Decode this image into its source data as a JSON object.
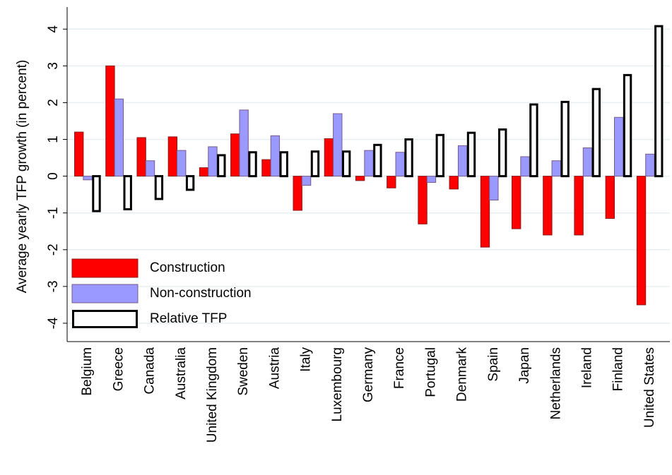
{
  "chart_data": {
    "type": "bar",
    "ylabel": "Average yearly TFP growth (in percent)",
    "categories": [
      "Belgium",
      "Greece",
      "Canada",
      "Australia",
      "United Kingdom",
      "Sweden",
      "Austria",
      "Italy",
      "Luxembourg",
      "Germany",
      "France",
      "Portugal",
      "Denmark",
      "Spain",
      "Japan",
      "Netherlands",
      "Ireland",
      "Finland",
      "United States"
    ],
    "series": [
      {
        "name": "Construction",
        "color": "#ff0000",
        "edgecolor": "#8b1a1a",
        "values": [
          1.2,
          3.0,
          1.05,
          1.07,
          0.23,
          1.15,
          0.45,
          -0.93,
          1.02,
          -0.12,
          -0.32,
          -1.3,
          -0.35,
          -1.93,
          -1.43,
          -1.6,
          -1.6,
          -1.15,
          -3.5
        ]
      },
      {
        "name": "Non-construction",
        "color": "#9999ff",
        "edgecolor": "#7a5a8a",
        "values": [
          -0.1,
          2.1,
          0.42,
          0.7,
          0.8,
          1.8,
          1.1,
          -0.25,
          1.7,
          0.7,
          0.65,
          -0.17,
          0.83,
          -0.65,
          0.53,
          0.42,
          0.77,
          1.6,
          0.6
        ]
      },
      {
        "name": "Relative TFP",
        "color": "#ffffff",
        "edgecolor": "#000000",
        "values": [
          -0.95,
          -0.9,
          -0.62,
          -0.37,
          0.57,
          0.65,
          0.65,
          0.67,
          0.67,
          0.85,
          1.0,
          1.12,
          1.18,
          1.27,
          1.95,
          2.02,
          2.37,
          2.75,
          4.08
        ]
      }
    ],
    "ylim": [
      -4.5,
      4.6
    ],
    "yticks": [
      -4,
      -3,
      -2,
      -1,
      0,
      1,
      2,
      3,
      4
    ],
    "grid": true,
    "legend": "lower left"
  }
}
